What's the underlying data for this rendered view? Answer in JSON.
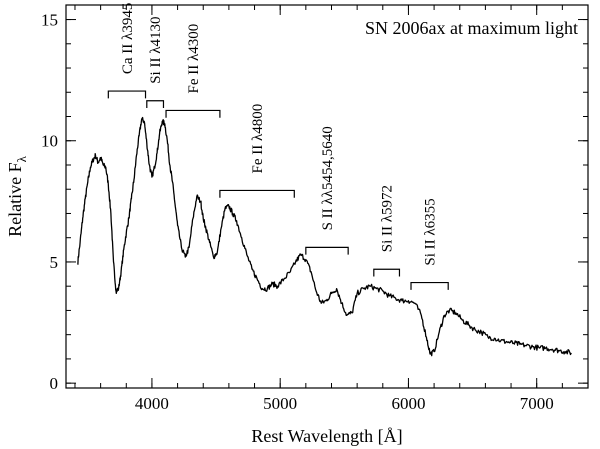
{
  "chart_data": {
    "type": "line",
    "title": "SN 2006ax at maximum light",
    "xlabel": "Rest Wavelength   [Å]",
    "ylabel": "Relative F",
    "ylabel_sub": "λ",
    "xlim": [
      3330,
      7400
    ],
    "ylim": [
      -0.2,
      15.6
    ],
    "xticks": [
      4000,
      5000,
      6000,
      7000
    ],
    "xtick_labels": [
      "4000",
      "5000",
      "6000",
      "7000"
    ],
    "yticks": [
      0,
      5,
      10,
      15
    ],
    "ytick_labels": [
      "0",
      "5",
      "10",
      "15"
    ],
    "x_minor_step": 200,
    "y_minor_step": 1,
    "grid": false,
    "series": [
      {
        "name": "SN 2006ax",
        "x": [
          3420,
          3440,
          3460,
          3480,
          3500,
          3520,
          3540,
          3560,
          3580,
          3600,
          3620,
          3640,
          3660,
          3680,
          3700,
          3720,
          3740,
          3760,
          3780,
          3800,
          3820,
          3840,
          3860,
          3880,
          3900,
          3920,
          3940,
          3960,
          3980,
          4000,
          4020,
          4040,
          4060,
          4080,
          4100,
          4120,
          4140,
          4160,
          4180,
          4200,
          4230,
          4260,
          4290,
          4320,
          4350,
          4380,
          4400,
          4420,
          4450,
          4480,
          4510,
          4540,
          4570,
          4600,
          4630,
          4660,
          4700,
          4740,
          4780,
          4820,
          4860,
          4900,
          4940,
          4980,
          5030,
          5080,
          5120,
          5160,
          5200,
          5240,
          5280,
          5320,
          5360,
          5400,
          5440,
          5480,
          5520,
          5560,
          5600,
          5650,
          5700,
          5750,
          5800,
          5850,
          5900,
          5950,
          6000,
          6050,
          6100,
          6140,
          6170,
          6200,
          6240,
          6280,
          6320,
          6370,
          6420,
          6470,
          6520,
          6570,
          6620,
          6670,
          6720,
          6770,
          6820,
          6870,
          6920,
          6970,
          7020,
          7070,
          7120,
          7170,
          7220,
          7270
        ],
        "y": [
          4.9,
          5.8,
          6.8,
          7.6,
          8.3,
          8.9,
          9.2,
          9.4,
          9.1,
          9.3,
          9.0,
          8.9,
          8.2,
          7.0,
          5.0,
          3.8,
          3.9,
          4.6,
          5.5,
          6.2,
          6.8,
          7.6,
          8.4,
          9.4,
          10.2,
          10.9,
          10.8,
          9.9,
          9.0,
          8.5,
          8.9,
          9.5,
          10.3,
          10.8,
          10.7,
          10.0,
          9.0,
          8.3,
          7.4,
          6.5,
          5.6,
          5.2,
          5.6,
          6.8,
          7.7,
          7.5,
          6.8,
          6.4,
          5.8,
          5.2,
          5.4,
          6.4,
          7.2,
          7.3,
          7.0,
          6.7,
          6.0,
          5.3,
          4.7,
          4.3,
          3.9,
          3.9,
          4.1,
          4.0,
          4.3,
          4.6,
          5.0,
          5.3,
          5.1,
          4.6,
          3.8,
          3.3,
          3.4,
          3.7,
          3.9,
          3.3,
          2.8,
          2.9,
          3.7,
          3.9,
          4.0,
          3.9,
          3.8,
          3.6,
          3.5,
          3.4,
          3.4,
          3.3,
          2.8,
          1.9,
          1.2,
          1.3,
          2.1,
          2.8,
          3.0,
          2.9,
          2.6,
          2.4,
          2.2,
          2.1,
          1.9,
          1.85,
          1.75,
          1.7,
          1.65,
          1.6,
          1.55,
          1.5,
          1.45,
          1.45,
          1.4,
          1.35,
          1.3,
          1.25
        ]
      }
    ],
    "annotations": [
      {
        "label": "Ca II λ3945",
        "x_start": 3660,
        "x_end": 3950,
        "bracket_y": 12.05,
        "tick_bottom": 11.75,
        "label_y": 12.75
      },
      {
        "label": "Si II λ4130",
        "x_start": 3960,
        "x_end": 4090,
        "bracket_y": 11.65,
        "tick_bottom": 11.35,
        "label_y": 12.35
      },
      {
        "label": "Fe II λ4300",
        "x_start": 4110,
        "x_end": 4530,
        "bracket_y": 11.25,
        "tick_bottom": 10.95,
        "label_y": 11.95
      },
      {
        "label": "Fe II λ4800",
        "x_start": 4530,
        "x_end": 5110,
        "bracket_y": 7.95,
        "tick_bottom": 7.65,
        "label_y": 8.65
      },
      {
        "label": "S II λλ5454,5640",
        "x_start": 5200,
        "x_end": 5530,
        "bracket_y": 5.6,
        "tick_bottom": 5.3,
        "label_y": 6.3
      },
      {
        "label": "Si II λ5972",
        "x_start": 5730,
        "x_end": 5930,
        "bracket_y": 4.7,
        "tick_bottom": 4.4,
        "label_y": 5.4
      },
      {
        "label": "Si II λ6355",
        "x_start": 6020,
        "x_end": 6310,
        "bracket_y": 4.15,
        "tick_bottom": 3.85,
        "label_y": 4.85
      }
    ]
  }
}
